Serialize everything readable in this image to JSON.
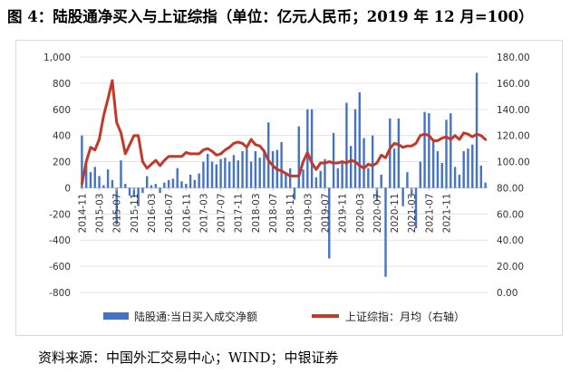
{
  "title": "图 4：陆股通净买入与上证综指（单位：亿元人民币；2019 年 12 月=100）",
  "source": "资料来源：中国外汇交易中心；WIND；中银证券",
  "chart_data": {
    "type": "bar+line",
    "title": "图 4：陆股通净买入与上证综指（单位：亿元人民币；2019 年 12 月=100）",
    "xlabel": "",
    "ylabel": "",
    "ylim": [
      -800,
      1000
    ],
    "y2lim": [
      0,
      180
    ],
    "y_ticks": [
      "1,000",
      "800",
      "600",
      "400",
      "200",
      "0",
      "-200",
      "-400",
      "-600",
      "-800"
    ],
    "y2_ticks": [
      "180.00",
      "160.00",
      "140.00",
      "120.00",
      "100.00",
      "80.00",
      "60.00",
      "40.00",
      "20.00",
      "0.00"
    ],
    "x_tick_labels": [
      "2014-11",
      "2015-03",
      "2015-07",
      "2015-11",
      "2016-03",
      "2016-07",
      "2016-11",
      "2017-03",
      "2017-07",
      "2017-11",
      "2018-03",
      "2018-07",
      "2018-11",
      "2019-03",
      "2019-07",
      "2019-11",
      "2020-03",
      "2020-07",
      "2020-11",
      "2021-03",
      "2021-07",
      "2021-11"
    ],
    "x_start": "2014-11",
    "legend_position": "bottom",
    "colors": {
      "bar": "#4472c4",
      "line": "#c0392b"
    },
    "series": [
      {
        "name": "陆股通:当日买入成交净额",
        "type": "bar",
        "axis": "left",
        "values": [
          400,
          180,
          120,
          160,
          90,
          20,
          140,
          60,
          -280,
          210,
          30,
          -60,
          -70,
          -140,
          -40,
          90,
          20,
          30,
          -40,
          40,
          60,
          70,
          150,
          50,
          30,
          100,
          60,
          110,
          200,
          260,
          200,
          180,
          220,
          230,
          200,
          250,
          210,
          280,
          300,
          200,
          280,
          230,
          290,
          500,
          280,
          290,
          350,
          120,
          150,
          -90,
          470,
          140,
          600,
          600,
          80,
          130,
          220,
          -540,
          420,
          150,
          200,
          650,
          320,
          600,
          730,
          380,
          150,
          400,
          -100,
          100,
          -680,
          530,
          300,
          530,
          -140,
          120,
          -50,
          -310,
          200,
          580,
          570,
          370,
          280,
          190,
          520,
          570,
          160,
          100,
          280,
          300,
          330,
          880,
          170,
          40
        ]
      },
      {
        "name": "上证综指：月均（右轴）",
        "type": "line",
        "axis": "right",
        "values": [
          83,
          100,
          111,
          109,
          117,
          135,
          148,
          162,
          130,
          122,
          106,
          113,
          120,
          120,
          100,
          95,
          98,
          101,
          97,
          101,
          104,
          104,
          104,
          104,
          107,
          106,
          106,
          106,
          109,
          110,
          108,
          105,
          106,
          109,
          111,
          114,
          115,
          114,
          111,
          117,
          113,
          112,
          108,
          101,
          97,
          94,
          93,
          91,
          89,
          89,
          89,
          100,
          107,
          99,
          94,
          99,
          99,
          100,
          99,
          99,
          100,
          99,
          101,
          100,
          97,
          95,
          98,
          97,
          99,
          105,
          103,
          110,
          114,
          113,
          111,
          112,
          112,
          114,
          120,
          121,
          120,
          116,
          116,
          118,
          119,
          117,
          120,
          117,
          122,
          121,
          119,
          121,
          120,
          117
        ]
      }
    ]
  }
}
